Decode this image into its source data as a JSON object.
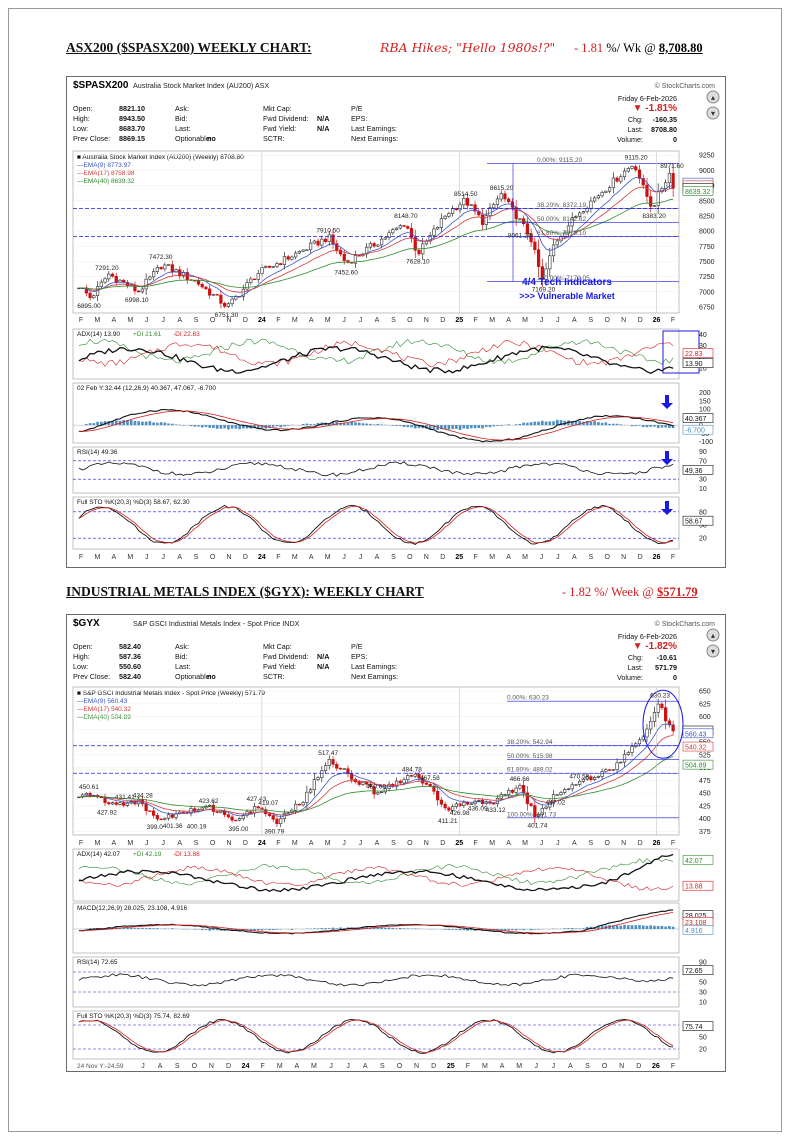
{
  "heading1": {
    "title": "ASX200 ($SPASX200) WEEKLY CHART:",
    "subtitle": "RBA Hikes; \"Hello 1980s!?\"",
    "change": "- 1.81",
    "suffix": "%/ Wk @",
    "close": "8,708.80"
  },
  "heading2": {
    "title": "INDUSTRIAL METALS INDEX ($GYX): WEEKLY CHART",
    "change": "- 1.82",
    "suffix": "%/ Week @",
    "close": "$571.79"
  },
  "colors": {
    "red": "#d21f1f",
    "navy": "#1a1ae6",
    "price_up": "#2b2b2b",
    "price_down": "#cc1010",
    "ema9": "#3a55c8",
    "ema17": "#d43a3a",
    "ema40": "#2e8b2e",
    "histogram": "#4a8fc0"
  },
  "chart1": {
    "symbol": "$SPASX200",
    "name": "Australia Stock Market Index (AU200) ASX",
    "brand": "© StockCharts.com",
    "date": "Friday  6-Feb-2026",
    "pct": "▼ -1.81%",
    "chg_label": "Chg:",
    "chg": "-160.35",
    "last_label": "Last:",
    "last": "8708.80",
    "vol_label": "Volume:",
    "vol": "0",
    "quote": [
      [
        "Open:",
        "8821.10",
        "Ask:",
        "",
        "Mkt Cap:",
        "",
        "P/E",
        ""
      ],
      [
        "High:",
        "8943.50",
        "Bid:",
        "",
        "Fwd Dividend:",
        "N/A",
        "EPS:",
        ""
      ],
      [
        "Low:",
        "8683.70",
        "Last:",
        "",
        "Fwd Yield:",
        "N/A",
        "Last Earnings:",
        ""
      ],
      [
        "Prev Close:",
        "8869.15",
        "Optionable:",
        "no",
        "SCTR:",
        "",
        "Next Earnings:",
        ""
      ]
    ],
    "legend": [
      "Australia Stock Market Index (AU200) (Weekly) 8708.80",
      "EMA(9) 8773.97",
      "EMA(17) 8758.98",
      "EMA(40) 8639.32"
    ],
    "price_axis": [
      "9250",
      "9000",
      "8750",
      "8500",
      "8250",
      "8000",
      "7750",
      "7500",
      "7250",
      "7000",
      "6750"
    ],
    "price_labels": [
      "6895.00",
      "7291.20",
      "6998.10",
      "7472.30",
      "6751.30",
      "7910.50",
      "7452.60",
      "8148.70",
      "7628.10",
      "8514.50",
      "8615.20",
      "8061.20",
      "7169.20",
      "9115.20",
      "8383.20",
      "8971.60"
    ],
    "last_tags": [
      "8773.97",
      "8758.98",
      "8708.80",
      "8639.32"
    ],
    "fib": [
      "0.00%: 9115.20",
      "38.20%: 8372.19",
      "50.00%: 8142.62",
      "61.80%: 7913.10",
      "100.00%: 7170.05"
    ],
    "annotation1": "4/4 Tech Indicators",
    "annotation2": ">>> Vulnerable Market",
    "months_top": [
      "F",
      "M",
      "A",
      "M",
      "J",
      "J",
      "A",
      "S",
      "O",
      "N",
      "D",
      "24",
      "F",
      "M",
      "A",
      "M",
      "J",
      "J",
      "A",
      "S",
      "O",
      "N",
      "D",
      "25",
      "F",
      "M",
      "A",
      "M",
      "J",
      "J",
      "A",
      "S",
      "O",
      "N",
      "D",
      "26",
      "F"
    ],
    "adx_label": "ADX(14) 13.90",
    "pdi_label": "+DI 21.61",
    "mdi_label": "-DI 22.83",
    "adx_axis": [
      "40",
      "30",
      "20",
      "10"
    ],
    "adx_tags": [
      "22.83",
      "13.90"
    ],
    "macd_label": "02 Feb Y:32.44 (12,26,9) 40.367, 47.067, -6.700",
    "macd_axis": [
      "200",
      "150",
      "100",
      "50",
      "0",
      "-50",
      "-100"
    ],
    "macd_tags": [
      "40.367",
      "-6.700"
    ],
    "rsi_label": "RSI(14) 49.36",
    "rsi_axis": [
      "90",
      "70",
      "50",
      "30",
      "10"
    ],
    "rsi_tags": [
      "49.36"
    ],
    "sto_label": "Full STO %K(20,3) %D(3) 58.67, 62.30",
    "sto_axis": [
      "80",
      "50",
      "20"
    ],
    "sto_tags": [
      "58.67"
    ],
    "months_bottom": [
      "F",
      "M",
      "A",
      "M",
      "J",
      "J",
      "A",
      "S",
      "O",
      "N",
      "D",
      "24",
      "F",
      "M",
      "A",
      "M",
      "J",
      "J",
      "A",
      "S",
      "O",
      "N",
      "D",
      "25",
      "F",
      "M",
      "A",
      "M",
      "J",
      "J",
      "A",
      "S",
      "O",
      "N",
      "D",
      "26",
      "F"
    ]
  },
  "chart2": {
    "symbol": "$GYX",
    "name": "S&P GSCI Industrial Metals Index - Spot Price INDX",
    "brand": "© StockCharts.com",
    "date": "Friday  6-Feb-2026",
    "pct": "▼ -1.82%",
    "chg_label": "Chg:",
    "chg": "-10.61",
    "last_label": "Last:",
    "last": "571.79",
    "vol_label": "Volume:",
    "vol": "0",
    "quote": [
      [
        "Open:",
        "582.40",
        "Ask:",
        "",
        "Mkt Cap:",
        "",
        "P/E",
        ""
      ],
      [
        "High:",
        "587.36",
        "Bid:",
        "",
        "Fwd Dividend:",
        "N/A",
        "EPS:",
        ""
      ],
      [
        "Low:",
        "550.60",
        "Last:",
        "",
        "Fwd Yield:",
        "N/A",
        "Last Earnings:",
        ""
      ],
      [
        "Prev Close:",
        "582.40",
        "Optionable:",
        "no",
        "SCTR:",
        "",
        "Next Earnings:",
        ""
      ]
    ],
    "legend": [
      "S&P GSCI Industrial Metals Index - Spot Price (Weekly) 571.79",
      "EMA(9) 560.43",
      "EMA(17) 540.32",
      "EMA(40) 504.89"
    ],
    "price_axis": [
      "650",
      "625",
      "600",
      "575",
      "550",
      "525",
      "500",
      "475",
      "450",
      "425",
      "400",
      "375"
    ],
    "price_labels": [
      "450.61",
      "427.92",
      "431.41",
      "434.28",
      "399.0",
      "401.36",
      "400.19",
      "423.62",
      "395.00",
      "427.43",
      "419.07",
      "390.79",
      "517.47",
      "450.69",
      "484.78",
      "467.58",
      "411.21",
      "426.98",
      "436.09",
      "433.12",
      "466.66",
      "401.74",
      "447.02",
      "470.58",
      "630.23"
    ],
    "last_tags": [
      "571.79",
      "560.43",
      "540.32",
      "504.89"
    ],
    "fib": [
      "0.00%: 630.23",
      "38.20%: 542.94",
      "50.00%: 515.98",
      "61.80%: 489.02",
      "100.00%: 401.73"
    ],
    "months_top": [
      "F",
      "M",
      "A",
      "M",
      "J",
      "J",
      "A",
      "S",
      "O",
      "N",
      "D",
      "24",
      "F",
      "M",
      "A",
      "M",
      "J",
      "J",
      "A",
      "S",
      "O",
      "N",
      "D",
      "25",
      "F",
      "M",
      "A",
      "M",
      "J",
      "J",
      "A",
      "S",
      "O",
      "N",
      "D",
      "26",
      "F"
    ],
    "adx_label": "ADX(14) 42.07",
    "pdi_label": "+DI 42.19",
    "mdi_label": "-DI 13.88",
    "adx_tags": [
      "42.07",
      "13.88"
    ],
    "macd_label": "MACD(12,26,9) 28.025, 23.108, 4.916",
    "macd_tags": [
      "28.025",
      "23.108",
      "4.916"
    ],
    "rsi_label": "RSI(14) 72.65",
    "rsi_axis": [
      "90",
      "70",
      "50",
      "30",
      "10"
    ],
    "rsi_tags": [
      "72.65"
    ],
    "sto_label": "Full STO %K(20,3) %D(3) 75.74, 82.69",
    "sto_axis": [
      "80",
      "50",
      "20"
    ],
    "sto_tags": [
      "75.74"
    ],
    "start_label": "24 Nov Y:-24.59",
    "months_bottom": [
      "J",
      "A",
      "S",
      "O",
      "N",
      "D",
      "24",
      "F",
      "M",
      "A",
      "M",
      "J",
      "J",
      "A",
      "S",
      "O",
      "N",
      "D",
      "25",
      "F",
      "M",
      "A",
      "M",
      "J",
      "J",
      "A",
      "S",
      "O",
      "N",
      "D",
      "26",
      "F"
    ]
  }
}
